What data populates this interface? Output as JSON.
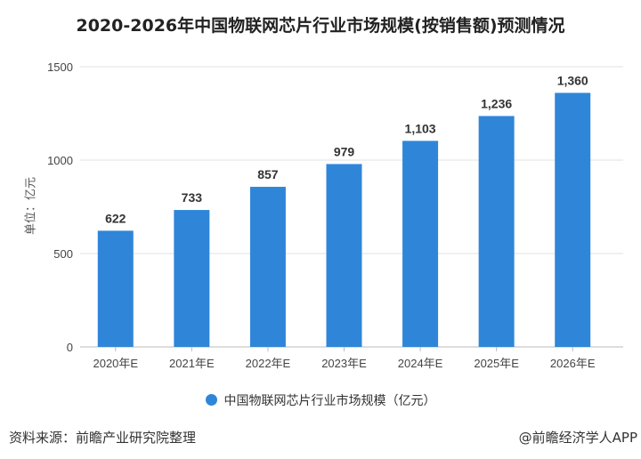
{
  "chart_data": {
    "type": "bar",
    "title": "2020-2026年中国物联网芯片行业市场规模(按销售额)预测情况",
    "ylabel": "单位：亿元",
    "categories": [
      "2020年E",
      "2021年E",
      "2022年E",
      "2023年E",
      "2024年E",
      "2025年E",
      "2026年E"
    ],
    "series": [
      {
        "name": "中国物联网芯片行业市场规模（亿元）",
        "values": [
          622,
          733,
          857,
          979,
          1103,
          1236,
          1360
        ],
        "color": "#2f86d9"
      }
    ],
    "data_labels": [
      "622",
      "733",
      "857",
      "979",
      "1,103",
      "1,236",
      "1,360"
    ],
    "yticks": [
      0,
      500,
      1000,
      1500
    ],
    "ylim": [
      0,
      1500
    ],
    "grid": "horizontal",
    "legend": "bottom"
  },
  "footer": {
    "source": "资料来源：前瞻产业研究院整理",
    "credit": "@前瞻经济学人APP"
  }
}
